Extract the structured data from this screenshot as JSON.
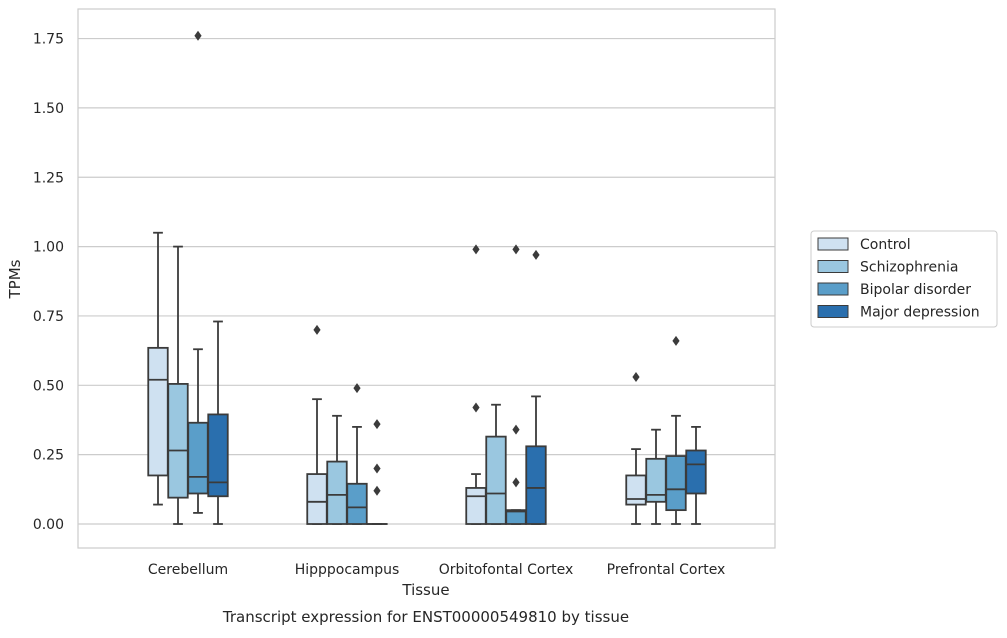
{
  "chart_data": {
    "type": "box",
    "xlabel": "Tissue",
    "ylabel": "TPMs",
    "caption": "Transcript expression for ENST00000549810 by tissue",
    "ylim": [
      -0.085,
      1.85
    ],
    "yticks": [
      0.0,
      0.25,
      0.5,
      0.75,
      1.0,
      1.25,
      1.5,
      1.75
    ],
    "ytick_labels": [
      "0.00",
      "0.25",
      "0.50",
      "0.75",
      "1.00",
      "1.25",
      "1.50",
      "1.75"
    ],
    "grid": true,
    "legend_position": "right",
    "categories": [
      "Cerebellum",
      "Hipppocampus",
      "Orbitofontal Cortex",
      "Prefrontal Cortex"
    ],
    "series": [
      {
        "name": "Control",
        "color": "#cfe1f1",
        "boxes": [
          {
            "q1": 0.175,
            "median": 0.52,
            "q3": 0.635,
            "whisker_low": 0.07,
            "whisker_high": 1.05,
            "outliers": []
          },
          {
            "q1": 0.0,
            "median": 0.08,
            "q3": 0.18,
            "whisker_low": 0.0,
            "whisker_high": 0.45,
            "outliers": [
              0.7
            ]
          },
          {
            "q1": 0.0,
            "median": 0.1,
            "q3": 0.13,
            "whisker_low": 0.0,
            "whisker_high": 0.18,
            "outliers": [
              0.42,
              0.99
            ]
          },
          {
            "q1": 0.07,
            "median": 0.09,
            "q3": 0.175,
            "whisker_low": 0.0,
            "whisker_high": 0.27,
            "outliers": [
              0.53
            ]
          }
        ]
      },
      {
        "name": "Schizophrenia",
        "color": "#9ac7e0",
        "boxes": [
          {
            "q1": 0.095,
            "median": 0.265,
            "q3": 0.505,
            "whisker_low": 0.0,
            "whisker_high": 1.0,
            "outliers": []
          },
          {
            "q1": 0.0,
            "median": 0.105,
            "q3": 0.225,
            "whisker_low": 0.0,
            "whisker_high": 0.39,
            "outliers": []
          },
          {
            "q1": 0.0,
            "median": 0.11,
            "q3": 0.315,
            "whisker_low": 0.0,
            "whisker_high": 0.43,
            "outliers": []
          },
          {
            "q1": 0.08,
            "median": 0.105,
            "q3": 0.235,
            "whisker_low": 0.0,
            "whisker_high": 0.34,
            "outliers": []
          }
        ]
      },
      {
        "name": "Bipolar disorder",
        "color": "#5a9ec9",
        "boxes": [
          {
            "q1": 0.11,
            "median": 0.17,
            "q3": 0.365,
            "whisker_low": 0.04,
            "whisker_high": 0.63,
            "outliers": [
              1.76
            ]
          },
          {
            "q1": 0.0,
            "median": 0.06,
            "q3": 0.145,
            "whisker_low": 0.0,
            "whisker_high": 0.35,
            "outliers": [
              0.49
            ]
          },
          {
            "q1": 0.0,
            "median": 0.045,
            "q3": 0.05,
            "whisker_low": 0.0,
            "whisker_high": 0.05,
            "outliers": [
              0.15,
              0.34,
              0.99
            ]
          },
          {
            "q1": 0.05,
            "median": 0.125,
            "q3": 0.245,
            "whisker_low": 0.0,
            "whisker_high": 0.39,
            "outliers": [
              0.66
            ]
          }
        ]
      },
      {
        "name": "Major depression",
        "color": "#2a6fae",
        "boxes": [
          {
            "q1": 0.1,
            "median": 0.15,
            "q3": 0.395,
            "whisker_low": 0.0,
            "whisker_high": 0.73,
            "outliers": []
          },
          {
            "q1": 0.0,
            "median": 0.0,
            "q3": 0.0,
            "whisker_low": 0.0,
            "whisker_high": 0.0,
            "outliers": [
              0.12,
              0.2,
              0.36
            ]
          },
          {
            "q1": 0.0,
            "median": 0.13,
            "q3": 0.28,
            "whisker_low": 0.0,
            "whisker_high": 0.46,
            "outliers": [
              0.97
            ]
          },
          {
            "q1": 0.11,
            "median": 0.215,
            "q3": 0.265,
            "whisker_low": 0.0,
            "whisker_high": 0.35,
            "outliers": []
          }
        ]
      }
    ]
  }
}
